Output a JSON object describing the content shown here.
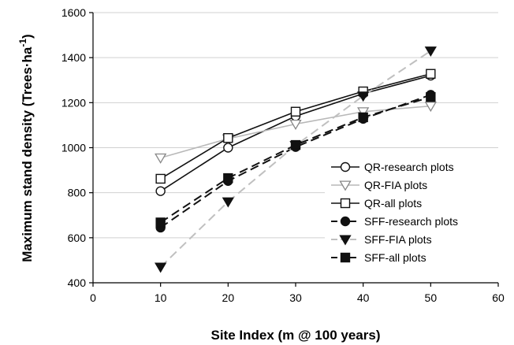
{
  "chart_data": {
    "type": "line",
    "xlabel": "Site Index (m @ 100 years)",
    "ylabel": "Maximum stand density (Trees·ha",
    "ylabel_sup": "-1",
    "ylabel_close": ")",
    "xlim": [
      0,
      60
    ],
    "ylim": [
      400,
      1600
    ],
    "xticks": [
      0,
      10,
      20,
      30,
      40,
      50,
      60
    ],
    "yticks": [
      400,
      600,
      800,
      1000,
      1200,
      1400,
      1600
    ],
    "grid": "horizontal",
    "legend_position": "center-right",
    "x": [
      10,
      20,
      30,
      40,
      50
    ],
    "series": [
      {
        "name": "QR-research plots",
        "values": [
          807,
          1000,
          1140,
          1240,
          1320
        ],
        "marker": "circle-open",
        "line": "solid",
        "color": "#111111"
      },
      {
        "name": "QR-FIA plots",
        "values": [
          955,
          1040,
          1105,
          1160,
          1185
        ],
        "marker": "triangle-down-open",
        "line": "solid",
        "color": "#b8b8b8"
      },
      {
        "name": "QR-all plots",
        "values": [
          862,
          1043,
          1160,
          1250,
          1328
        ],
        "marker": "square-open",
        "line": "solid",
        "color": "#111111"
      },
      {
        "name": "SFF-research plots",
        "values": [
          645,
          852,
          1003,
          1128,
          1235
        ],
        "marker": "circle-filled",
        "line": "dashed",
        "color": "#111111"
      },
      {
        "name": "SFF-FIA plots",
        "values": [
          470,
          760,
          1010,
          1230,
          1430
        ],
        "marker": "triangle-down-filled",
        "line": "dashed",
        "color": "#c0c0c0"
      },
      {
        "name": "SFF-all plots",
        "values": [
          668,
          865,
          1012,
          1135,
          1225
        ],
        "marker": "square-filled",
        "line": "dashed",
        "color": "#111111"
      }
    ]
  }
}
